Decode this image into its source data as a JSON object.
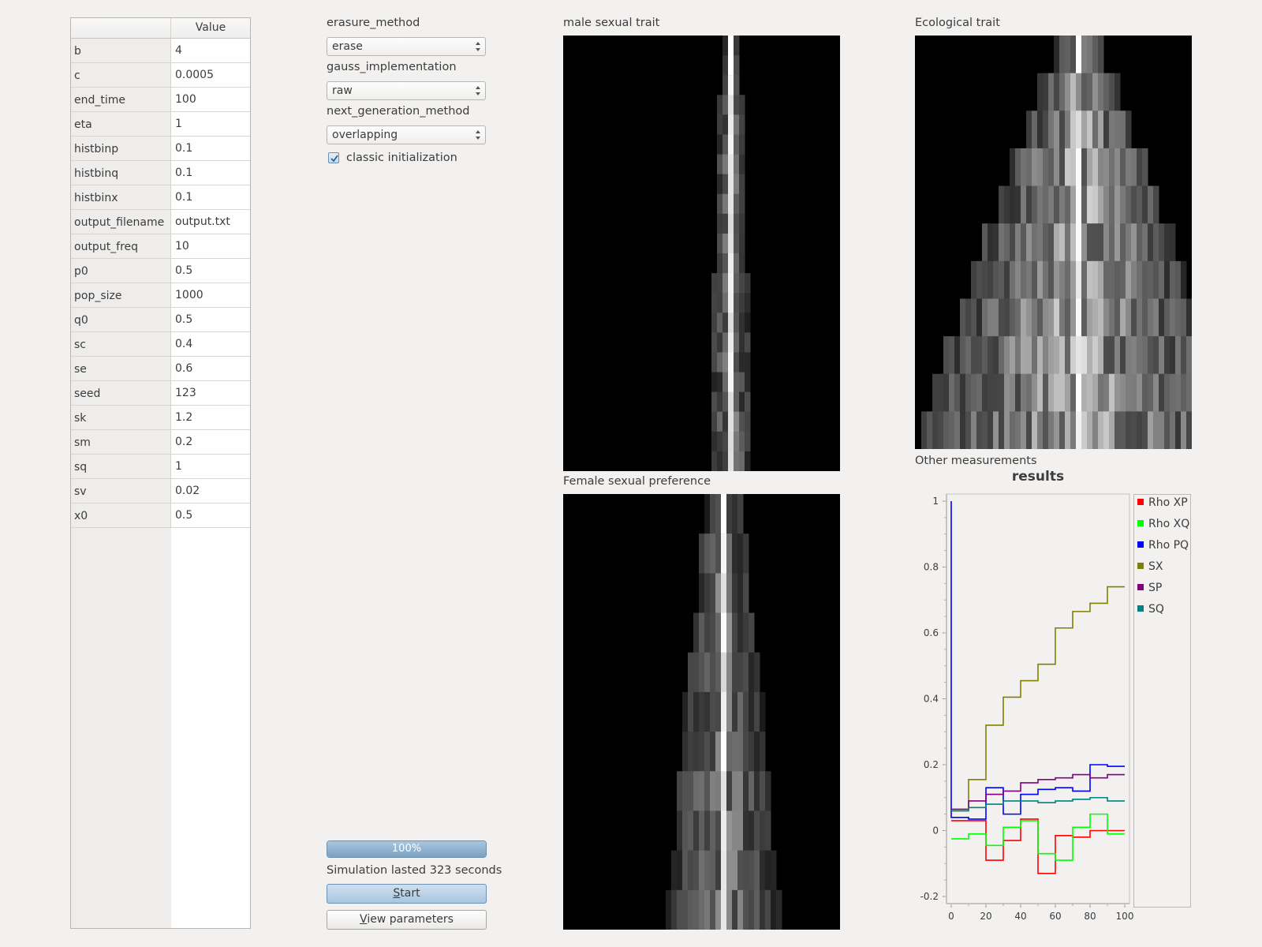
{
  "params_table": {
    "header_value": "Value",
    "rows": [
      {
        "key": "b",
        "value": "4"
      },
      {
        "key": "c",
        "value": "0.0005"
      },
      {
        "key": "end_time",
        "value": "100"
      },
      {
        "key": "eta",
        "value": "1"
      },
      {
        "key": "histbinp",
        "value": "0.1"
      },
      {
        "key": "histbinq",
        "value": "0.1"
      },
      {
        "key": "histbinx",
        "value": "0.1"
      },
      {
        "key": "output_filename",
        "value": "output.txt"
      },
      {
        "key": "output_freq",
        "value": "10"
      },
      {
        "key": "p0",
        "value": "0.5"
      },
      {
        "key": "pop_size",
        "value": "1000"
      },
      {
        "key": "q0",
        "value": "0.5"
      },
      {
        "key": "sc",
        "value": "0.4"
      },
      {
        "key": "se",
        "value": "0.6"
      },
      {
        "key": "seed",
        "value": "123"
      },
      {
        "key": "sk",
        "value": "1.2"
      },
      {
        "key": "sm",
        "value": "0.2"
      },
      {
        "key": "sq",
        "value": "1"
      },
      {
        "key": "sv",
        "value": "0.02"
      },
      {
        "key": "x0",
        "value": "0.5"
      }
    ]
  },
  "controls": {
    "erasure_label": "erasure_method",
    "erasure_value": "erase",
    "gauss_label": "gauss_implementation",
    "gauss_value": "raw",
    "nextgen_label": "next_generation_method",
    "nextgen_value": "overlapping",
    "classic_init_label": "classic initialization",
    "classic_init_checked": true,
    "progress_percent": 100,
    "progress_text": "100%",
    "status_text": "Simulation lasted 323 seconds",
    "start_label_first": "S",
    "start_label_rest": "tart",
    "view_label_first": "V",
    "view_label_rest": "iew parameters"
  },
  "panels": {
    "male_title": "male sexual trait",
    "eco_title": "Ecological trait",
    "female_title": "Female sexual preference",
    "other_title": "Other measurements"
  },
  "chart_data": {
    "type": "line",
    "title": "results",
    "xlim": [
      0,
      100
    ],
    "ylim": [
      -0.2,
      1.0
    ],
    "xticks": [
      0,
      20,
      40,
      60,
      80,
      100
    ],
    "yticks": [
      -0.2,
      0,
      0.2,
      0.4,
      0.6,
      0.8,
      1.0
    ],
    "step": true,
    "legend_position": "right",
    "x": [
      0,
      10,
      20,
      30,
      40,
      50,
      60,
      70,
      80,
      90,
      100
    ],
    "series": [
      {
        "name": "Rho XP",
        "color": "#ff0000",
        "values": [
          0.03,
          0.03,
          -0.09,
          -0.03,
          0.035,
          -0.13,
          -0.015,
          -0.02,
          0.0,
          0.0,
          0.0
        ]
      },
      {
        "name": "Rho XQ",
        "color": "#00ff00",
        "values": [
          -0.025,
          -0.01,
          -0.045,
          0.01,
          0.03,
          -0.07,
          -0.09,
          0.01,
          0.05,
          -0.01,
          -0.01
        ]
      },
      {
        "name": "Rho PQ",
        "color": "#0000ff",
        "values": [
          0.04,
          0.035,
          0.13,
          0.05,
          0.11,
          0.125,
          0.13,
          0.12,
          0.2,
          0.195,
          0.195
        ]
      },
      {
        "name": "SX",
        "color": "#808000",
        "values": [
          0.06,
          0.155,
          0.32,
          0.405,
          0.455,
          0.505,
          0.615,
          0.665,
          0.69,
          0.74,
          0.74
        ]
      },
      {
        "name": "SP",
        "color": "#800080",
        "values": [
          0.065,
          0.09,
          0.11,
          0.12,
          0.145,
          0.155,
          0.16,
          0.17,
          0.16,
          0.17,
          0.17
        ]
      },
      {
        "name": "SQ",
        "color": "#008080",
        "values": [
          0.06,
          0.07,
          0.08,
          0.09,
          0.09,
          0.085,
          0.09,
          0.095,
          0.1,
          0.09,
          0.09
        ]
      }
    ],
    "initial_spike": {
      "series": "Rho PQ",
      "x": 0,
      "value": 1.0
    }
  }
}
